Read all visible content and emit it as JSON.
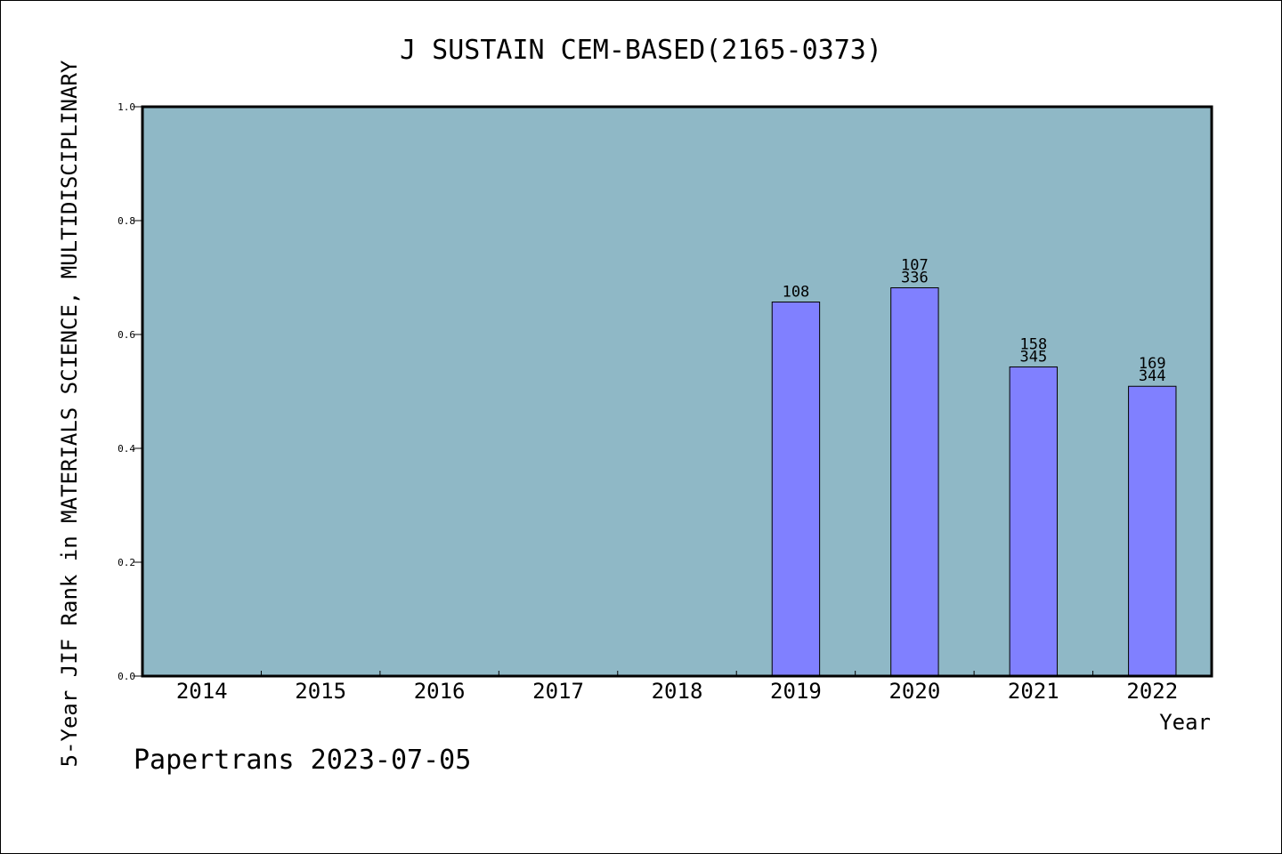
{
  "chart_data": {
    "type": "bar",
    "title": "J SUSTAIN CEM-BASED(2165-0373)",
    "xlabel": "Year",
    "ylabel": "5-Year JIF Rank in MATERIALS SCIENCE, MULTIDISCIPLINARY",
    "ylim": [
      0,
      1.0
    ],
    "yticks": [
      "0.0",
      "0.2",
      "0.4",
      "0.6",
      "0.8",
      "1.0"
    ],
    "categories": [
      "2014",
      "2015",
      "2016",
      "2017",
      "2018",
      "2019",
      "2020",
      "2021",
      "2022"
    ],
    "values": [
      null,
      null,
      null,
      null,
      null,
      0.657,
      0.682,
      0.543,
      0.509
    ],
    "bar_labels": [
      [],
      [],
      [],
      [],
      [],
      [
        "108"
      ],
      [
        "107",
        "336"
      ],
      [
        "158",
        "345"
      ],
      [
        "169",
        "344"
      ]
    ],
    "grid": false,
    "colors": {
      "plot_background": "#8fb8c6",
      "bar_fill": "#8080ff",
      "bar_edge": "#000000"
    }
  },
  "footer": {
    "text": "Papertrans 2023-07-05"
  }
}
